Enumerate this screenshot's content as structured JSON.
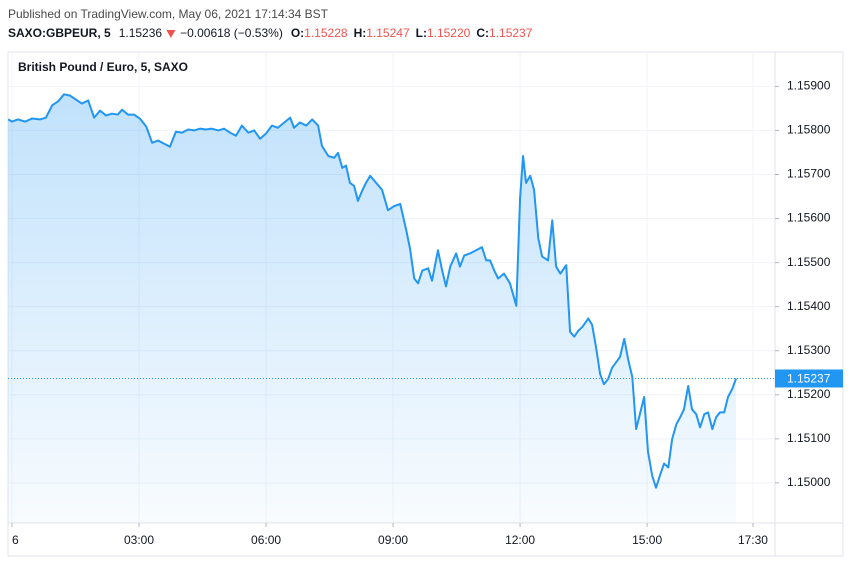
{
  "header": {
    "published": "Published on TradingView.com, May 06, 2021 17:14:34 BST",
    "symbol": "SAXO:GBPEUR, 5",
    "last": "1.15236",
    "change": "−0.00618 (−0.53%)",
    "ohlc": [
      {
        "label": "O:",
        "value": "1.15228"
      },
      {
        "label": "H:",
        "value": "1.15247"
      },
      {
        "label": "L:",
        "value": "1.15220"
      },
      {
        "label": "C:",
        "value": "1.15237"
      }
    ]
  },
  "chart_data": {
    "type": "line",
    "title": "British Pound / Euro, 5, SAXO",
    "x": [
      -0.09,
      0,
      0.14,
      0.31,
      0.47,
      0.66,
      0.8,
      0.95,
      1.09,
      1.23,
      1.37,
      1.51,
      1.65,
      1.8,
      1.94,
      2.08,
      2.22,
      2.36,
      2.5,
      2.6,
      2.74,
      2.88,
      3.02,
      3.17,
      3.31,
      3.45,
      3.59,
      3.73,
      3.87,
      4.02,
      4.16,
      4.3,
      4.44,
      4.58,
      4.72,
      4.87,
      5.01,
      5.15,
      5.29,
      5.43,
      5.58,
      5.72,
      5.86,
      6,
      6.14,
      6.28,
      6.43,
      6.57,
      6.66,
      6.8,
      6.95,
      7.09,
      7.23,
      7.32,
      7.47,
      7.61,
      7.7,
      7.8,
      7.89,
      7.98,
      8.08,
      8.17,
      8.27,
      8.36,
      8.46,
      8.6,
      8.74,
      8.88,
      9.02,
      9.17,
      9.31,
      9.4,
      9.5,
      9.59,
      9.69,
      9.83,
      9.92,
      10.06,
      10.16,
      10.25,
      10.35,
      10.49,
      10.58,
      10.68,
      10.82,
      10.96,
      11.1,
      11.2,
      11.29,
      11.39,
      11.48,
      11.62,
      11.76,
      11.91,
      12,
      12.07,
      12.14,
      12.24,
      12.33,
      12.43,
      12.52,
      12.66,
      12.76,
      12.85,
      12.95,
      13.09,
      13.18,
      13.28,
      13.37,
      13.47,
      13.61,
      13.7,
      13.8,
      13.89,
      13.98,
      14.08,
      14.17,
      14.27,
      14.36,
      14.46,
      14.55,
      14.65,
      14.74,
      14.84,
      14.93,
      15.02,
      15.12,
      15.21,
      15.31,
      15.4,
      15.5,
      15.59,
      15.69,
      15.78,
      15.87,
      15.97,
      16.06,
      16.16,
      16.25,
      16.35,
      16.44,
      16.54,
      16.63,
      16.72,
      16.82,
      16.91,
      17.01,
      17.1
    ],
    "series": [
      {
        "color": "#2196f3",
        "values": [
          1.15825,
          1.1582,
          1.15825,
          1.1582,
          1.15827,
          1.15825,
          1.15829,
          1.15857,
          1.15866,
          1.15882,
          1.15879,
          1.1587,
          1.15861,
          1.15868,
          1.15829,
          1.15845,
          1.15834,
          1.15838,
          1.15836,
          1.15847,
          1.15836,
          1.15836,
          1.15827,
          1.15809,
          1.15772,
          1.15777,
          1.1577,
          1.15763,
          1.15797,
          1.15795,
          1.15802,
          1.158,
          1.15804,
          1.15802,
          1.15804,
          1.158,
          1.15804,
          1.15795,
          1.15788,
          1.15811,
          1.15795,
          1.158,
          1.15781,
          1.15793,
          1.15811,
          1.15806,
          1.15818,
          1.15829,
          1.15806,
          1.15818,
          1.15811,
          1.15825,
          1.15811,
          1.15765,
          1.15742,
          1.15738,
          1.15749,
          1.15715,
          1.1572,
          1.15681,
          1.15674,
          1.1564,
          1.15663,
          1.15681,
          1.15697,
          1.15681,
          1.15665,
          1.15619,
          1.15628,
          1.15633,
          1.15574,
          1.15532,
          1.15464,
          1.15453,
          1.15482,
          1.15487,
          1.15459,
          1.15528,
          1.15482,
          1.15446,
          1.15491,
          1.15521,
          1.15491,
          1.15516,
          1.15521,
          1.15528,
          1.15535,
          1.15505,
          1.15505,
          1.15482,
          1.15464,
          1.15475,
          1.15453,
          1.15402,
          1.15647,
          1.15742,
          1.15681,
          1.15697,
          1.15665,
          1.15555,
          1.15514,
          1.15505,
          1.15596,
          1.15491,
          1.15475,
          1.15494,
          1.15343,
          1.15332,
          1.15345,
          1.15354,
          1.15373,
          1.15359,
          1.15304,
          1.15247,
          1.15224,
          1.15236,
          1.15261,
          1.15274,
          1.15286,
          1.15327,
          1.15281,
          1.1524,
          1.15122,
          1.1516,
          1.15195,
          1.15071,
          1.15016,
          1.14989,
          1.15019,
          1.15044,
          1.15035,
          1.15099,
          1.15133,
          1.15149,
          1.15167,
          1.1522,
          1.15167,
          1.15156,
          1.15126,
          1.15156,
          1.1516,
          1.15122,
          1.15149,
          1.1516,
          1.1516,
          1.15195,
          1.15213,
          1.15237
        ]
      }
    ],
    "xlim": [
      -0.094,
      18.02
    ],
    "ylim": [
      1.14909,
      1.15978
    ],
    "xticks": [
      {
        "value": 0,
        "label": "6"
      },
      {
        "value": 3,
        "label": "03:00"
      },
      {
        "value": 6,
        "label": "06:00"
      },
      {
        "value": 9,
        "label": "09:00"
      },
      {
        "value": 12,
        "label": "12:00"
      },
      {
        "value": 15,
        "label": "15:00"
      },
      {
        "value": 17.5,
        "label": "17:30"
      }
    ],
    "yticks": [
      {
        "value": 1.15,
        "label": "1.15000"
      },
      {
        "value": 1.151,
        "label": "1.15100"
      },
      {
        "value": 1.152,
        "label": "1.15200"
      },
      {
        "value": 1.153,
        "label": "1.15300"
      },
      {
        "value": 1.154,
        "label": "1.15400"
      },
      {
        "value": 1.155,
        "label": "1.15500"
      },
      {
        "value": 1.156,
        "label": "1.15600"
      },
      {
        "value": 1.157,
        "label": "1.15700"
      },
      {
        "value": 1.158,
        "label": "1.15800"
      },
      {
        "value": 1.159,
        "label": "1.15900"
      }
    ],
    "last_price": 1.15237,
    "grid": true
  }
}
